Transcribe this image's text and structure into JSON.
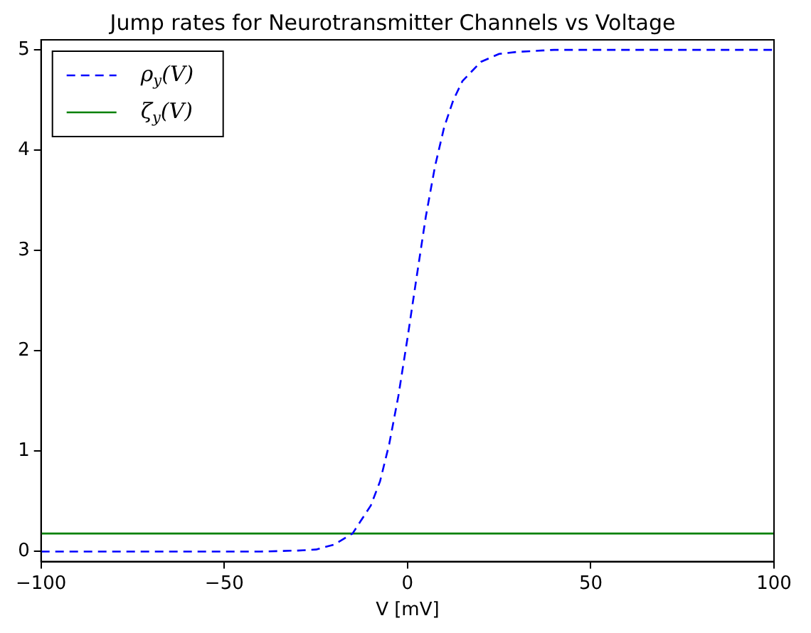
{
  "chart_data": {
    "type": "line",
    "title": "Jump rates for Neurotransmitter Channels vs Voltage",
    "xlabel": "V [mV]",
    "x": [
      -100,
      -60,
      -40,
      -30,
      -25,
      -20,
      -15,
      -10,
      -7.5,
      -5,
      -2.5,
      0,
      2.5,
      5,
      7.5,
      10,
      12.5,
      15,
      20,
      25,
      30,
      40,
      60,
      100
    ],
    "series": [
      {
        "name": "ρ$_{y}$(V)",
        "color": "#0000ff",
        "line_style": "dashed",
        "values": [
          0,
          0,
          0,
          0.01,
          0.02,
          0.07,
          0.18,
          0.46,
          0.7,
          1.07,
          1.55,
          2.13,
          2.74,
          3.34,
          3.84,
          4.23,
          4.5,
          4.69,
          4.88,
          4.96,
          4.98,
          5,
          5,
          5
        ]
      },
      {
        "name": "ζ$_{y}$(V)",
        "color": "#008000",
        "line_style": "solid",
        "values": [
          0.18,
          0.18,
          0.18,
          0.18,
          0.18,
          0.18,
          0.18,
          0.18,
          0.18,
          0.18,
          0.18,
          0.18,
          0.18,
          0.18,
          0.18,
          0.18,
          0.18,
          0.18,
          0.18,
          0.18,
          0.18,
          0.18,
          0.18,
          0.18
        ]
      }
    ],
    "xlim": [
      -100,
      100
    ],
    "xticks": [
      -100,
      -50,
      0,
      50,
      100
    ],
    "ylim": [
      -0.1,
      5.1
    ],
    "yticks": [
      0,
      1,
      2,
      3,
      4,
      5
    ],
    "grid": false,
    "legend": "top left",
    "marker": "none"
  }
}
